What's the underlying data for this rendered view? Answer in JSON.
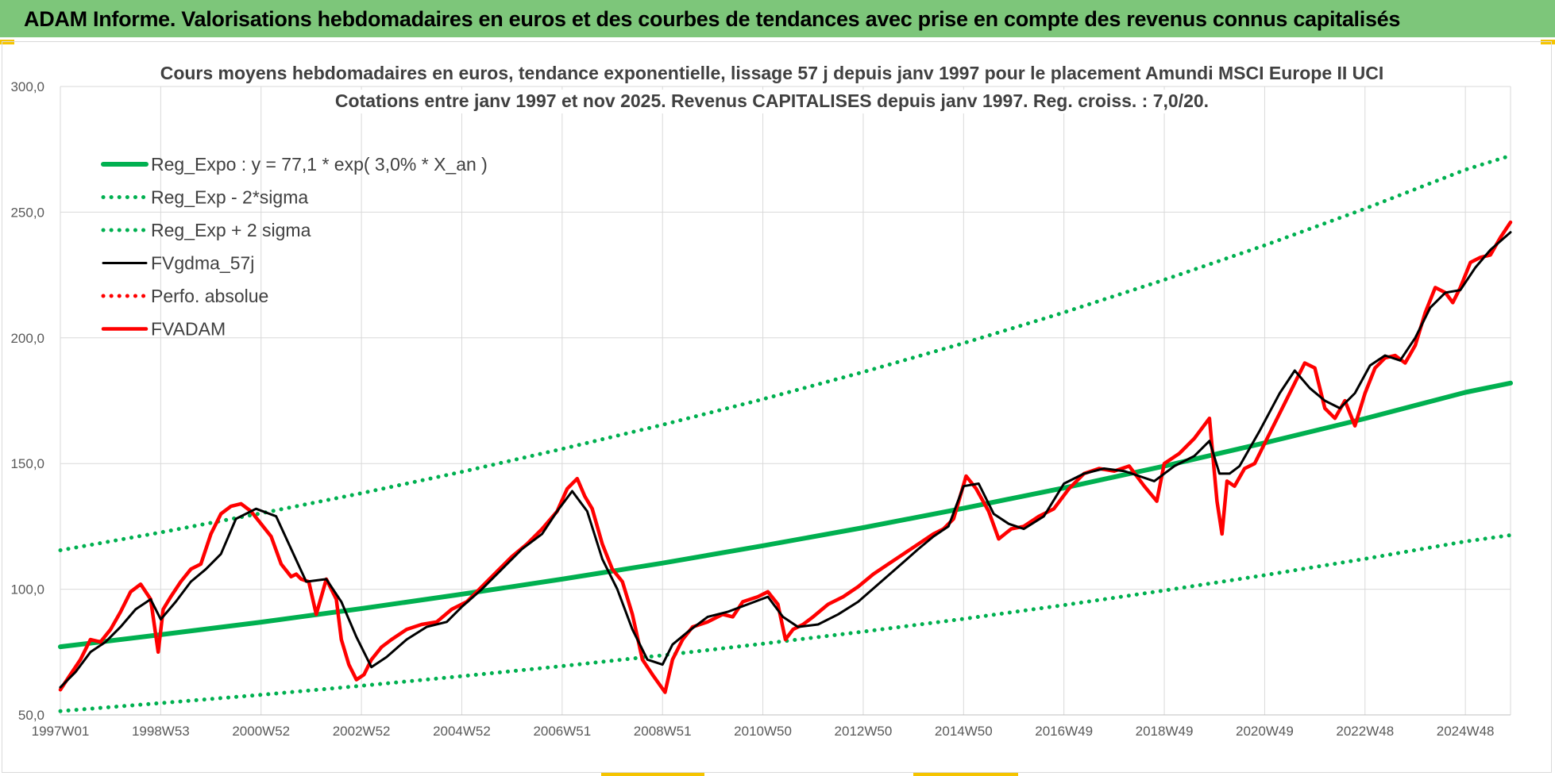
{
  "header": {
    "title": "ADAM Informe. Valorisations hebdomadaires en euros et des courbes de tendances avec prise en compte des revenus connus capitalisés"
  },
  "chart_data": {
    "type": "line",
    "title_line1": "Cours moyens hebdomadaires en euros, tendance exponentielle, lissage 57 j depuis janv 1997 pour le placement Amundi MSCI Europe II UCI",
    "title_line2": "Cotations entre janv 1997 et nov 2025. Revenus CAPITALISES depuis janv 1997. Reg. croiss. : 7,0/20.",
    "ylim": [
      50,
      300
    ],
    "yticks": [
      "50,0",
      "100,0",
      "150,0",
      "200,0",
      "250,0",
      "300,0"
    ],
    "xlim": [
      1997.0,
      2025.9
    ],
    "xticks": [
      {
        "label": "1997W01",
        "x": 1997.0
      },
      {
        "label": "1998W53",
        "x": 1999.0
      },
      {
        "label": "2000W52",
        "x": 2001.0
      },
      {
        "label": "2002W52",
        "x": 2003.0
      },
      {
        "label": "2004W52",
        "x": 2005.0
      },
      {
        "label": "2006W51",
        "x": 2007.0
      },
      {
        "label": "2008W51",
        "x": 2009.0
      },
      {
        "label": "2010W50",
        "x": 2011.0
      },
      {
        "label": "2012W50",
        "x": 2013.0
      },
      {
        "label": "2014W50",
        "x": 2015.0
      },
      {
        "label": "2016W49",
        "x": 2017.0
      },
      {
        "label": "2018W49",
        "x": 2019.0
      },
      {
        "label": "2020W49",
        "x": 2021.0
      },
      {
        "label": "2022W48",
        "x": 2023.0
      },
      {
        "label": "2024W48",
        "x": 2025.0
      }
    ],
    "grid": true,
    "legend_position": "top-left",
    "colors": {
      "green": "#00b050",
      "black": "#000000",
      "red": "#ff0000"
    },
    "series": [
      {
        "name": "Reg_Expo : y = 77,1 * exp( 3,0% *  X_an )",
        "style": "solid-thick",
        "color": "#00b050",
        "x": [
          1997.0,
          1999.0,
          2001.0,
          2003.0,
          2005.0,
          2007.0,
          2009.0,
          2011.0,
          2013.0,
          2015.0,
          2017.0,
          2019.0,
          2021.0,
          2023.0,
          2025.0,
          2025.9
        ],
        "values": [
          77.1,
          81.9,
          86.9,
          92.3,
          98.0,
          104.0,
          110.4,
          117.3,
          124.5,
          132.2,
          140.3,
          149.0,
          158.2,
          167.9,
          178.3,
          182.0
        ]
      },
      {
        "name": "Reg_Exp - 2*sigma",
        "style": "dotted",
        "color": "#00b050",
        "x": [
          1997.0,
          1999.0,
          2001.0,
          2003.0,
          2005.0,
          2007.0,
          2009.0,
          2011.0,
          2013.0,
          2015.0,
          2017.0,
          2019.0,
          2021.0,
          2023.0,
          2025.0,
          2025.9
        ],
        "values": [
          51.5,
          54.7,
          58.0,
          61.6,
          65.4,
          69.4,
          73.7,
          78.3,
          83.1,
          88.2,
          93.7,
          99.5,
          105.6,
          112.1,
          119.0,
          121.5
        ]
      },
      {
        "name": "Reg_Exp + 2 sigma",
        "style": "dotted",
        "color": "#00b050",
        "x": [
          1997.0,
          1999.0,
          2001.0,
          2003.0,
          2005.0,
          2007.0,
          2009.0,
          2011.0,
          2013.0,
          2015.0,
          2017.0,
          2019.0,
          2021.0,
          2023.0,
          2025.0,
          2025.9
        ],
        "values": [
          115.5,
          122.6,
          130.2,
          138.2,
          146.7,
          155.8,
          165.4,
          175.6,
          186.4,
          197.9,
          210.1,
          223.1,
          236.8,
          251.4,
          266.9,
          272.5
        ]
      },
      {
        "name": "FVgdma_57j",
        "style": "solid",
        "color": "#000000",
        "x": [
          1997.0,
          1997.3,
          1997.6,
          1997.9,
          1998.2,
          1998.5,
          1998.8,
          1999.0,
          1999.3,
          1999.6,
          1999.9,
          2000.2,
          2000.5,
          2000.9,
          2001.3,
          2001.6,
          2001.9,
          2002.3,
          2002.6,
          2002.9,
          2003.2,
          2003.5,
          2003.9,
          2004.3,
          2004.7,
          2005.0,
          2005.4,
          2005.8,
          2006.2,
          2006.6,
          2006.9,
          2007.2,
          2007.5,
          2007.8,
          2008.1,
          2008.4,
          2008.7,
          2009.0,
          2009.2,
          2009.5,
          2009.9,
          2010.3,
          2010.7,
          2011.1,
          2011.4,
          2011.7,
          2012.1,
          2012.5,
          2012.9,
          2013.3,
          2013.7,
          2014.1,
          2014.4,
          2014.7,
          2015.0,
          2015.3,
          2015.6,
          2015.9,
          2016.2,
          2016.6,
          2017.0,
          2017.4,
          2017.8,
          2018.2,
          2018.5,
          2018.8,
          2019.2,
          2019.6,
          2019.9,
          2020.1,
          2020.3,
          2020.5,
          2020.9,
          2021.3,
          2021.6,
          2021.9,
          2022.2,
          2022.5,
          2022.8,
          2023.1,
          2023.4,
          2023.7,
          2024.0,
          2024.3,
          2024.6,
          2024.9,
          2025.2,
          2025.5,
          2025.9
        ],
        "values": [
          61,
          67,
          75,
          79,
          85,
          92,
          96,
          88,
          95,
          103,
          108,
          114,
          128,
          132,
          129,
          116,
          103,
          104,
          95,
          81,
          69,
          73,
          80,
          85,
          87,
          93,
          100,
          108,
          116,
          122,
          131,
          139,
          131,
          112,
          100,
          84,
          72,
          70,
          78,
          83,
          89,
          91,
          94,
          97,
          89,
          85,
          86,
          90,
          95,
          102,
          109,
          116,
          121,
          125,
          141,
          142,
          130,
          126,
          124,
          129,
          142,
          146,
          148,
          147,
          145,
          143,
          149,
          153,
          159,
          146,
          146,
          149,
          163,
          178,
          187,
          180,
          175,
          172,
          178,
          189,
          193,
          191,
          200,
          212,
          218,
          219,
          228,
          235,
          242
        ]
      },
      {
        "name": "Perfo. absolue",
        "style": "dotted",
        "color": "#ff0000",
        "x": [],
        "values": []
      },
      {
        "name": "FVADAM",
        "style": "solid-thick",
        "color": "#ff0000",
        "x": [
          1997.0,
          1997.2,
          1997.4,
          1997.6,
          1997.8,
          1998.0,
          1998.2,
          1998.4,
          1998.6,
          1998.8,
          1998.95,
          1999.05,
          1999.2,
          1999.4,
          1999.6,
          1999.8,
          2000.0,
          2000.2,
          2000.4,
          2000.6,
          2000.8,
          2001.0,
          2001.2,
          2001.4,
          2001.6,
          2001.7,
          2001.8,
          2001.95,
          2002.1,
          2002.3,
          2002.5,
          2002.6,
          2002.75,
          2002.9,
          2003.05,
          2003.2,
          2003.4,
          2003.6,
          2003.9,
          2004.2,
          2004.5,
          2004.8,
          2005.1,
          2005.4,
          2005.7,
          2006.0,
          2006.3,
          2006.6,
          2006.9,
          2007.1,
          2007.3,
          2007.45,
          2007.6,
          2007.8,
          2008.0,
          2008.2,
          2008.4,
          2008.6,
          2008.8,
          2009.05,
          2009.2,
          2009.4,
          2009.6,
          2009.9,
          2010.2,
          2010.4,
          2010.6,
          2010.9,
          2011.1,
          2011.3,
          2011.45,
          2011.6,
          2011.8,
          2012.0,
          2012.3,
          2012.6,
          2012.9,
          2013.2,
          2013.5,
          2013.8,
          2014.1,
          2014.4,
          2014.6,
          2014.8,
          2015.05,
          2015.25,
          2015.5,
          2015.7,
          2015.95,
          2016.2,
          2016.5,
          2016.8,
          2017.1,
          2017.4,
          2017.7,
          2018.0,
          2018.3,
          2018.6,
          2018.85,
          2019.0,
          2019.3,
          2019.6,
          2019.9,
          2020.05,
          2020.15,
          2020.25,
          2020.4,
          2020.6,
          2020.8,
          2021.0,
          2021.3,
          2021.6,
          2021.8,
          2022.0,
          2022.2,
          2022.4,
          2022.6,
          2022.8,
          2023.0,
          2023.2,
          2023.4,
          2023.6,
          2023.8,
          2024.0,
          2024.2,
          2024.4,
          2024.6,
          2024.75,
          2024.9,
          2025.1,
          2025.3,
          2025.5,
          2025.7,
          2025.9
        ],
        "values": [
          60,
          66,
          72,
          80,
          79,
          84,
          91,
          99,
          102,
          96,
          75,
          92,
          97,
          103,
          108,
          110,
          122,
          130,
          133,
          134,
          131,
          126,
          121,
          110,
          105,
          106,
          104,
          103,
          90,
          104,
          96,
          80,
          70,
          64,
          66,
          72,
          77,
          80,
          84,
          86,
          87,
          92,
          95,
          101,
          107,
          113,
          118,
          124,
          131,
          140,
          144,
          137,
          132,
          118,
          108,
          103,
          90,
          72,
          66,
          59,
          72,
          80,
          85,
          87,
          90,
          89,
          95,
          97,
          99,
          94,
          80,
          84,
          86,
          89,
          94,
          97,
          101,
          106,
          110,
          114,
          118,
          122,
          124,
          128,
          145,
          140,
          131,
          120,
          124,
          125,
          129,
          132,
          140,
          146,
          148,
          147,
          149,
          141,
          135,
          150,
          154,
          160,
          168,
          135,
          122,
          143,
          141,
          148,
          150,
          158,
          170,
          182,
          190,
          188,
          172,
          168,
          175,
          165,
          178,
          188,
          192,
          193,
          190,
          197,
          210,
          220,
          218,
          214,
          220,
          230,
          232,
          233,
          240,
          246
        ]
      }
    ]
  }
}
